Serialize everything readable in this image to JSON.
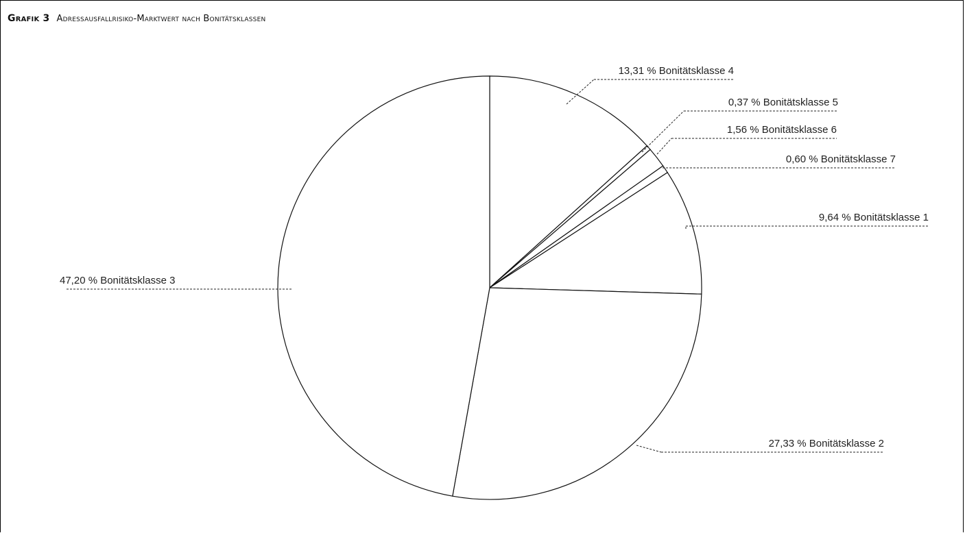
{
  "figure": {
    "label": "Grafik 3",
    "title": "Adressausfallrisiko-Marktwert nach Bonitätsklassen"
  },
  "chart_data": {
    "type": "pie",
    "title": "Adressausfallrisiko-Marktwert nach Bonitätsklassen",
    "unit": "%",
    "slices": [
      {
        "name": "Bonitätsklasse 4",
        "value": 13.31,
        "label": "13,31 % Bonitätsklasse 4"
      },
      {
        "name": "Bonitätsklasse 5",
        "value": 0.37,
        "label": "0,37 % Bonitätsklasse 5"
      },
      {
        "name": "Bonitätsklasse 6",
        "value": 1.56,
        "label": "1,56 % Bonitätsklasse 6"
      },
      {
        "name": "Bonitätsklasse 7",
        "value": 0.6,
        "label": "0,60 % Bonitätsklasse 7"
      },
      {
        "name": "Bonitätsklasse 1",
        "value": 9.64,
        "label": "9,64 % Bonitätsklasse 1"
      },
      {
        "name": "Bonitätsklasse 2",
        "value": 27.33,
        "label": "27,33 % Bonitätsklasse 2"
      },
      {
        "name": "Bonitätsklasse 3",
        "value": 47.2,
        "label": "47,20 % Bonitätsklasse 3"
      }
    ],
    "order": "clockwise from top",
    "colors": {
      "fill": "#ffffff",
      "stroke": "#111111"
    }
  }
}
